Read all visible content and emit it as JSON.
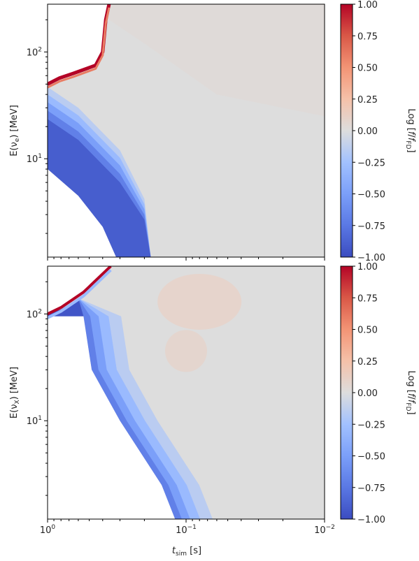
{
  "chart_data": [
    {
      "type": "heatmap",
      "panel": "top",
      "title": "",
      "xlabel": "",
      "ylabel": "E(ν_e) [MeV]",
      "ylabel_parts": {
        "prefix": "E(ν",
        "subscript": "e",
        "suffix": ") [MeV]"
      },
      "xscale": "log",
      "yscale": "log",
      "xlim": [
        1.0,
        0.01
      ],
      "ylim": [
        1.2,
        280
      ],
      "x_ticks": [
        {
          "value": 1.0,
          "label": ""
        },
        {
          "value": 0.1,
          "label": ""
        },
        {
          "value": 0.01,
          "label": ""
        }
      ],
      "y_ticks": [
        {
          "value": 10,
          "base": "10",
          "exp": "1"
        },
        {
          "value": 100,
          "base": "10",
          "exp": "2"
        }
      ],
      "colorbar": {
        "label": "Log [f/f_FD]",
        "label_parts": {
          "prefix": "Log [",
          "f1": "f",
          "slash": "/",
          "f2": "f",
          "sub": "FD",
          "suffix": "]"
        },
        "range": [
          -1.0,
          1.0
        ],
        "ticks": [
          "1.00",
          "0.75",
          "0.50",
          "0.25",
          "0.00",
          "−0.25",
          "−0.50",
          "−0.75",
          "−1.00"
        ],
        "colormap": "coolwarm"
      },
      "features": {
        "low_energy_boundary": [
          [
            1.0,
            8.0
          ],
          [
            0.6,
            4.5
          ],
          [
            0.4,
            2.3
          ],
          [
            0.32,
            1.2
          ]
        ],
        "high_energy_boundary": [
          [
            1.0,
            50
          ],
          [
            0.82,
            57
          ],
          [
            0.65,
            63
          ],
          [
            0.45,
            75
          ],
          [
            0.4,
            100
          ],
          [
            0.38,
            200
          ],
          [
            0.36,
            280
          ]
        ],
        "low_region_values_log_ratio": [
          -1.0,
          -0.2
        ],
        "plateau_value_log_ratio": 0.0
      },
      "colors": {
        "min": "#3b4cc0",
        "mid": "#dddddd",
        "max": "#b40426"
      }
    },
    {
      "type": "heatmap",
      "panel": "bottom",
      "title": "",
      "xlabel": "t_sim [s]",
      "xlabel_parts": {
        "main": "t",
        "subscript": "sim",
        "suffix": " [s]"
      },
      "ylabel": "E(ν_X) [MeV]",
      "ylabel_parts": {
        "prefix": "E(ν",
        "subscript": "X",
        "suffix": ") [MeV]"
      },
      "xscale": "log",
      "yscale": "log",
      "xlim": [
        1.0,
        0.01
      ],
      "ylim": [
        1.2,
        280
      ],
      "x_ticks": [
        {
          "value": 1.0,
          "base": "10",
          "exp": "0"
        },
        {
          "value": 0.1,
          "base": "10",
          "exp": "−1"
        },
        {
          "value": 0.01,
          "base": "10",
          "exp": "−2"
        }
      ],
      "y_ticks": [
        {
          "value": 10,
          "base": "10",
          "exp": "1"
        },
        {
          "value": 100,
          "base": "10",
          "exp": "2"
        }
      ],
      "colorbar": {
        "label": "Log [f/f_FD]",
        "label_parts": {
          "prefix": "Log [",
          "f1": "f",
          "slash": "/",
          "f2": "f",
          "sub": "FD",
          "suffix": "]"
        },
        "range": [
          -1.0,
          1.0
        ],
        "ticks": [
          "1.00",
          "0.75",
          "0.50",
          "0.25",
          "0.00",
          "−0.25",
          "−0.50",
          "−0.75",
          "−1.00"
        ],
        "colormap": "coolwarm"
      },
      "features": {
        "low_energy_boundary": [
          [
            0.55,
            95
          ],
          [
            0.48,
            30
          ],
          [
            0.3,
            10
          ],
          [
            0.15,
            2.5
          ],
          [
            0.12,
            1.2
          ]
        ],
        "high_energy_boundary": [
          [
            1.0,
            100
          ],
          [
            0.8,
            115
          ],
          [
            0.55,
            160
          ],
          [
            0.35,
            280
          ]
        ],
        "warm_patch_values_log_ratio": [
          0.05,
          0.15
        ],
        "plateau_value_log_ratio": 0.0
      },
      "colors": {
        "min": "#3b4cc0",
        "mid": "#dddddd",
        "max": "#b40426"
      }
    }
  ]
}
